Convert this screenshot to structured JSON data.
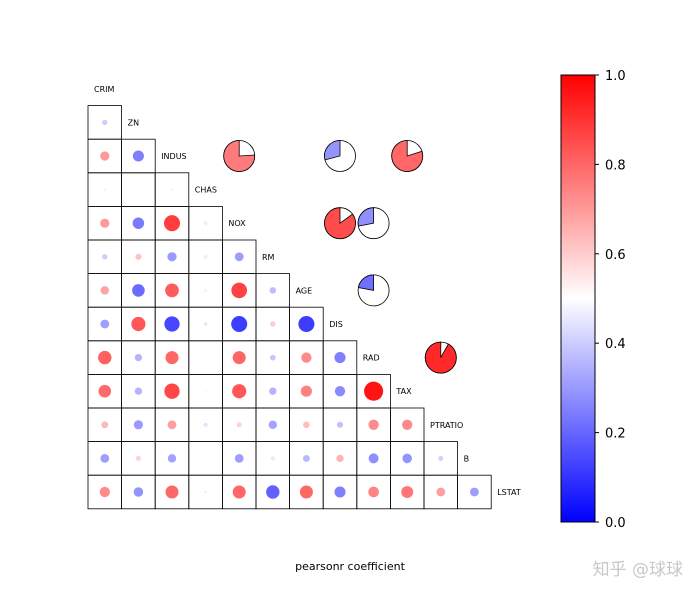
{
  "chart_data": {
    "type": "heatmap",
    "variables": [
      "CRIM",
      "ZN",
      "INDUS",
      "CHAS",
      "NOX",
      "RM",
      "AGE",
      "DIS",
      "RAD",
      "TAX",
      "PTRATIO",
      "B",
      "LSTAT"
    ],
    "xlabel": "pearsonr coefficient",
    "colorbar": {
      "ticks": [
        "0.0",
        "0.2",
        "0.4",
        "0.6",
        "0.8",
        "1.0"
      ],
      "range": [
        0,
        1
      ],
      "colors": [
        "#0000ff",
        "#ffffff",
        "#ff0000"
      ]
    },
    "lower_triangle_values": {
      "ZN": [
        0.4
      ],
      "INDUS": [
        0.7,
        0.25
      ],
      "CHAS": [
        0.47,
        0.48,
        0.53
      ],
      "NOX": [
        0.7,
        0.24,
        0.88,
        0.55
      ],
      "RM": [
        0.4,
        0.62,
        0.3,
        0.55,
        0.31
      ],
      "AGE": [
        0.68,
        0.21,
        0.82,
        0.54,
        0.87,
        0.37
      ],
      "DIS": [
        0.31,
        0.83,
        0.14,
        0.45,
        0.12,
        0.6,
        0.12
      ],
      "RAD": [
        0.81,
        0.35,
        0.8,
        0.5,
        0.8,
        0.39,
        0.73,
        0.25
      ],
      "TAX": [
        0.79,
        0.35,
        0.86,
        0.48,
        0.83,
        0.35,
        0.75,
        0.27,
        0.96
      ],
      "PTRATIO": [
        0.64,
        0.3,
        0.69,
        0.44,
        0.59,
        0.32,
        0.63,
        0.38,
        0.73,
        0.73
      ],
      "B": [
        0.31,
        0.59,
        0.32,
        0.52,
        0.31,
        0.56,
        0.36,
        0.65,
        0.28,
        0.29,
        0.41
      ],
      "LSTAT": [
        0.73,
        0.29,
        0.8,
        0.47,
        0.8,
        0.19,
        0.8,
        0.25,
        0.74,
        0.77,
        0.69,
        0.31
      ]
    },
    "upper_pies": [
      {
        "row": "INDUS",
        "col": "NOX",
        "value": 0.76
      },
      {
        "row": "INDUS",
        "col": "DIS",
        "value": 0.29
      },
      {
        "row": "INDUS",
        "col": "TAX",
        "value": 0.8
      },
      {
        "row": "NOX",
        "col": "DIS",
        "value": 0.85
      },
      {
        "row": "NOX",
        "col": "RAD",
        "value": 0.28
      },
      {
        "row": "AGE",
        "col": "RAD",
        "value": 0.22
      },
      {
        "row": "RAD",
        "col": "PTRATIO",
        "value": 0.92
      }
    ]
  },
  "watermark": "知乎 @球球"
}
